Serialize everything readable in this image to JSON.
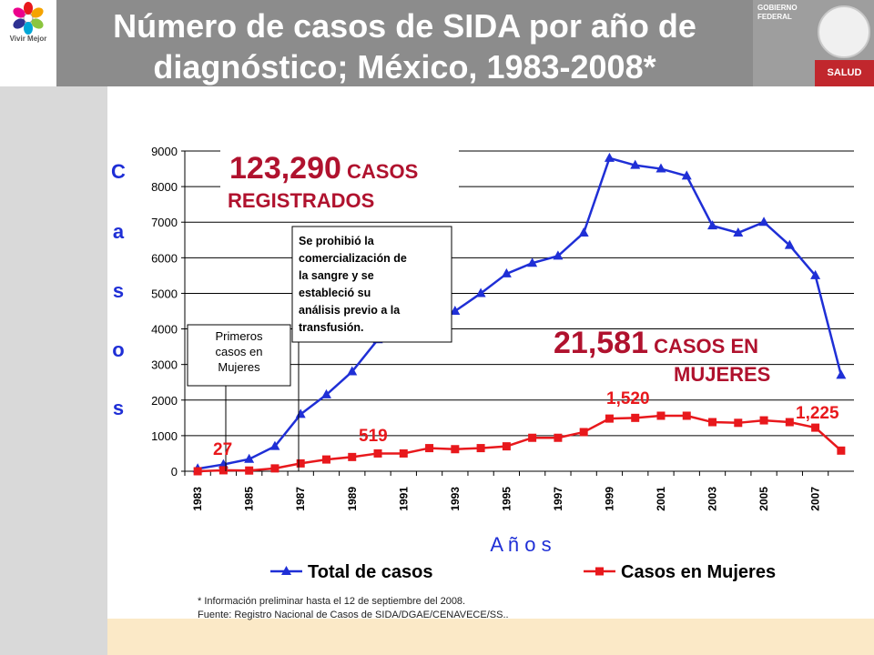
{
  "header": {
    "title_line1": "Número de casos de SIDA por año de",
    "title_line2": "diagnóstico; México, 1983-2008*",
    "logo_text": "Vivir Mejor",
    "gov_label_line1": "GOBIERNO",
    "gov_label_line2": "FEDERAL",
    "salud_label": "SALUD"
  },
  "chart_data": {
    "type": "line",
    "ylabel": "Casos",
    "xlabel": "A ñ o s",
    "ylim": [
      0,
      9000
    ],
    "yticks": [
      0,
      1000,
      2000,
      3000,
      4000,
      5000,
      6000,
      7000,
      8000,
      9000
    ],
    "ytick_labels": [
      "0",
      "1000",
      "2000",
      "3000",
      "4000",
      "5000",
      "6000",
      "7000",
      "8000",
      "9000"
    ],
    "x": [
      1983,
      1984,
      1985,
      1986,
      1987,
      1988,
      1989,
      1990,
      1991,
      1992,
      1993,
      1994,
      1995,
      1996,
      1997,
      1998,
      1999,
      2000,
      2001,
      2002,
      2003,
      2004,
      2005,
      2006,
      2007,
      2008
    ],
    "xtick_labels": [
      "1983",
      "1985",
      "1987",
      "1989",
      "1991",
      "1993",
      "1995",
      "1997",
      "1999",
      "2001",
      "2003",
      "2005",
      "2007"
    ],
    "grid": true,
    "legend_position": "bottom",
    "series": [
      {
        "name": "Total de casos",
        "color": "#1f2fd6",
        "marker": "triangle",
        "values": [
          70,
          190,
          340,
          700,
          1600,
          2150,
          2800,
          3700,
          4000,
          4300,
          4500,
          5000,
          5550,
          5850,
          6050,
          6700,
          8800,
          8600,
          8500,
          8300,
          6900,
          6700,
          7000,
          6350,
          5500,
          2700
        ]
      },
      {
        "name": "Casos en Mujeres",
        "color": "#e8181c",
        "marker": "square",
        "values": [
          0,
          27,
          20,
          80,
          220,
          330,
          400,
          500,
          500,
          650,
          620,
          650,
          700,
          940,
          940,
          1100,
          1480,
          1500,
          1560,
          1560,
          1380,
          1360,
          1430,
          1380,
          1225,
          580
        ]
      }
    ],
    "annotations": {
      "total_number": "123,290",
      "total_suffix": "CASOS",
      "total_line2": "REGISTRADOS",
      "women_number": "21,581",
      "women_suffix": "CASOS EN",
      "women_line2": "MUJERES",
      "box1": [
        "Primeros",
        "casos en",
        "Mujeres"
      ],
      "box2": [
        "Se prohibió la",
        "comercialización de",
        "la sangre y se",
        "estableció su",
        "análisis previo a la",
        "transfusión."
      ],
      "label_27": "27",
      "label_519": "519",
      "label_1520": "1,520",
      "label_1225": "1,225"
    }
  },
  "footer": {
    "note_line1": "* Información preliminar hasta el 12 de septiembre del 2008.",
    "note_line2": "Fuente: Registro Nacional de Casos de SIDA/DGAE/CENAVECE/SS.."
  },
  "colors": {
    "title_bg": "#8c8c8c",
    "accent_red": "#b0122e",
    "total_blue": "#1f2fd6",
    "women_red": "#e8181c"
  }
}
